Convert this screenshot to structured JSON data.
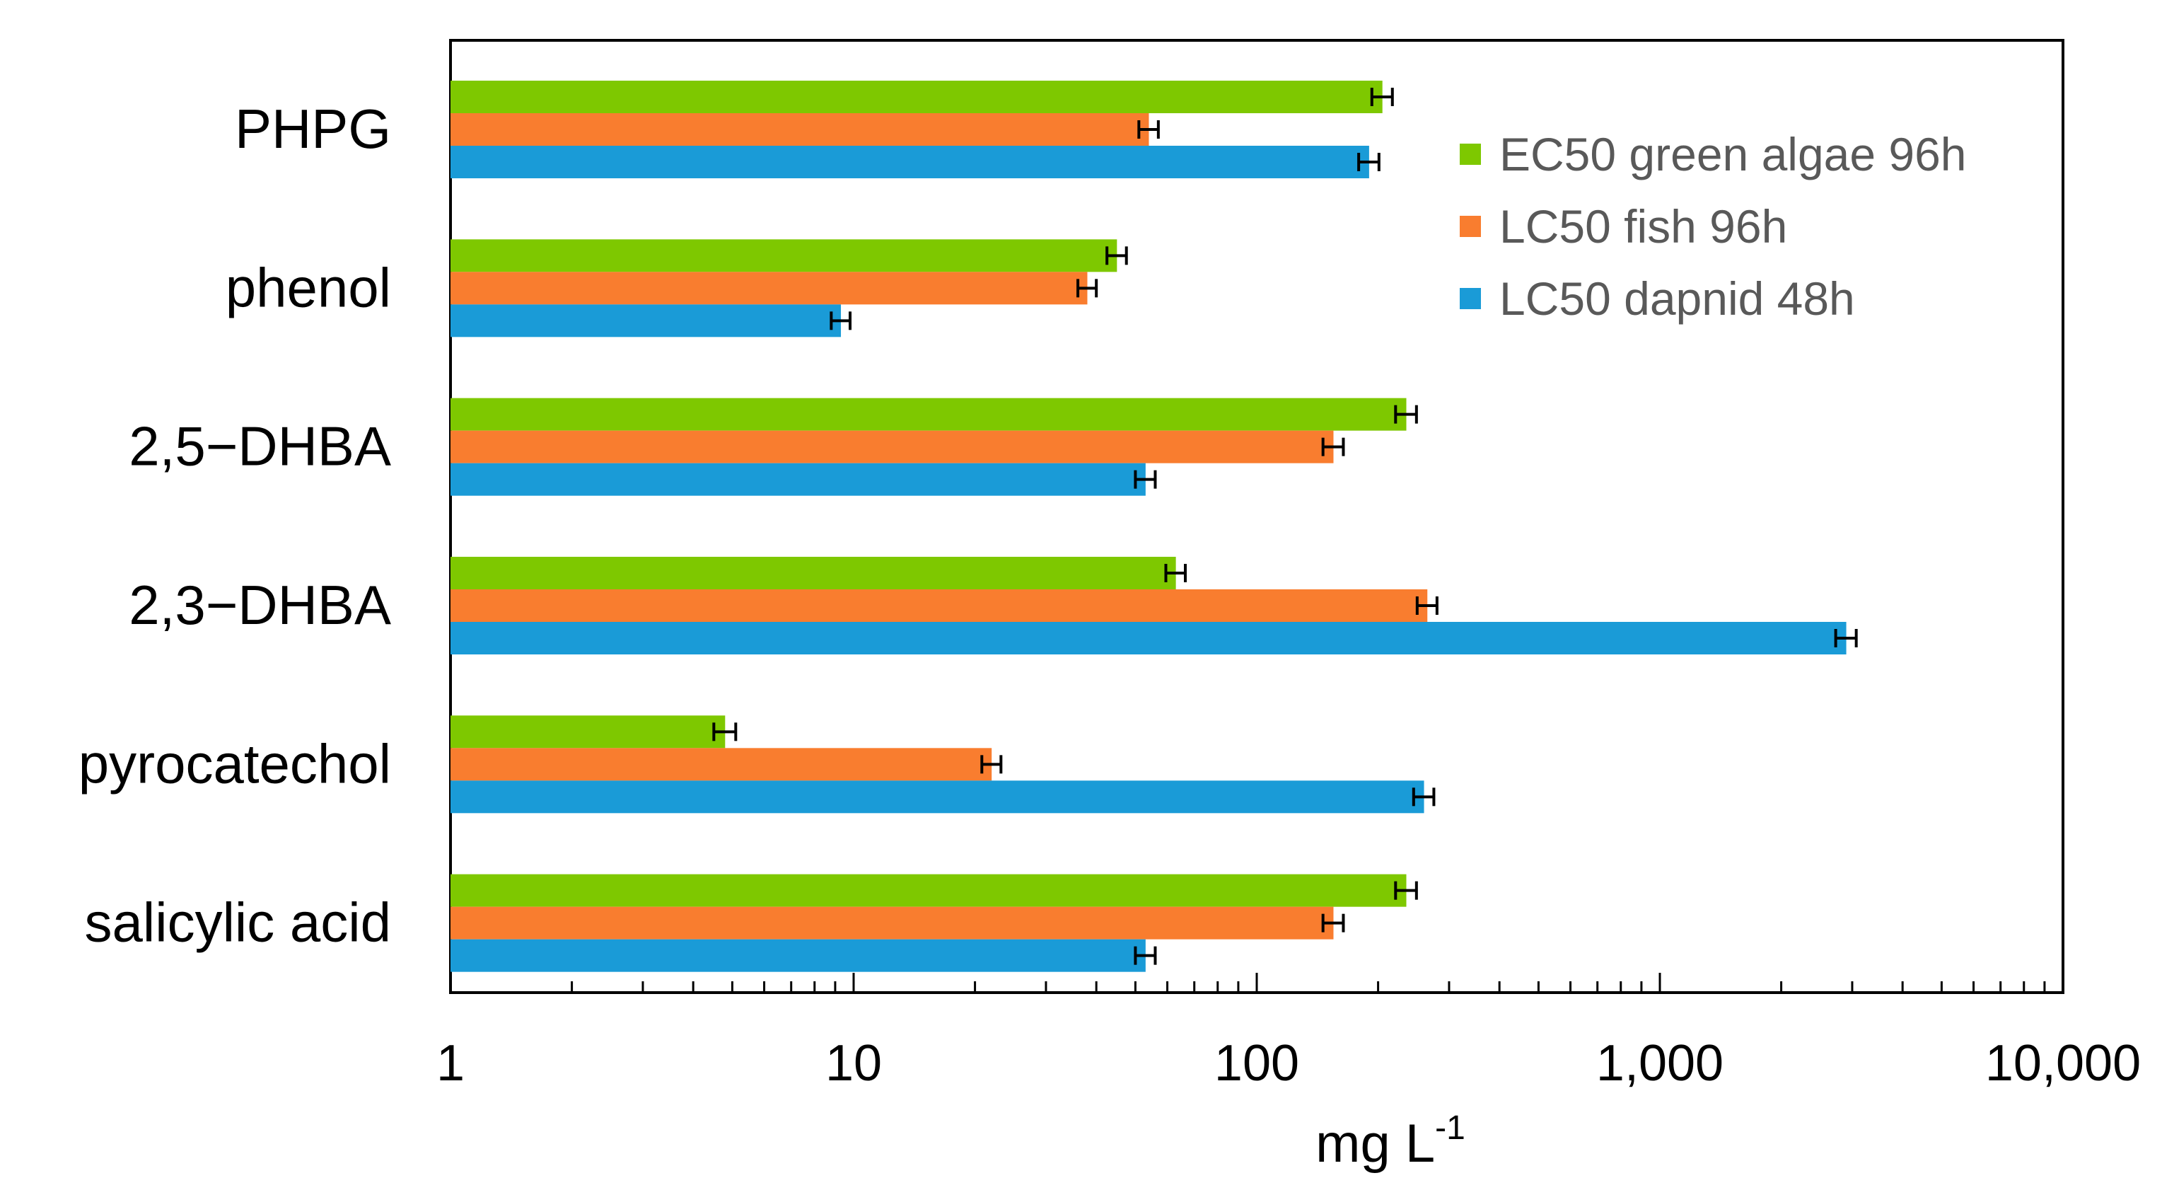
{
  "chart_data": {
    "type": "bar",
    "orientation": "horizontal",
    "x_scale": "log",
    "xlim": [
      1,
      10000
    ],
    "xlabel": "mg L",
    "xlabel_superscript": "-1",
    "x_ticks": [
      {
        "value": 1,
        "label": "1"
      },
      {
        "value": 10,
        "label": "10"
      },
      {
        "value": 100,
        "label": "100"
      },
      {
        "value": 1000,
        "label": "1,000"
      },
      {
        "value": 10000,
        "label": "10,000"
      }
    ],
    "categories": [
      "PHPG",
      "phenol",
      "2,5−DHBA",
      "2,3−DHBA",
      "pyrocatechol",
      "salicylic acid"
    ],
    "legend_position": "top-right",
    "series": [
      {
        "name": "EC50 green algae 96h",
        "color": "#7ec800",
        "values": [
          205,
          45,
          235,
          63,
          4.8,
          235
        ],
        "error": [
          12,
          2.5,
          14,
          3.5,
          0.3,
          14
        ]
      },
      {
        "name": "LC50 fish 96h",
        "color": "#f97d2f",
        "values": [
          54,
          38,
          155,
          265,
          22,
          155
        ],
        "error": [
          3,
          2,
          9,
          15,
          1.2,
          9
        ]
      },
      {
        "name": "LC50 dapnid 48h",
        "color": "#1a9bd7",
        "values": [
          190,
          9.3,
          53,
          2900,
          260,
          53
        ],
        "error": [
          11,
          0.5,
          3,
          170,
          15,
          3
        ]
      }
    ]
  }
}
